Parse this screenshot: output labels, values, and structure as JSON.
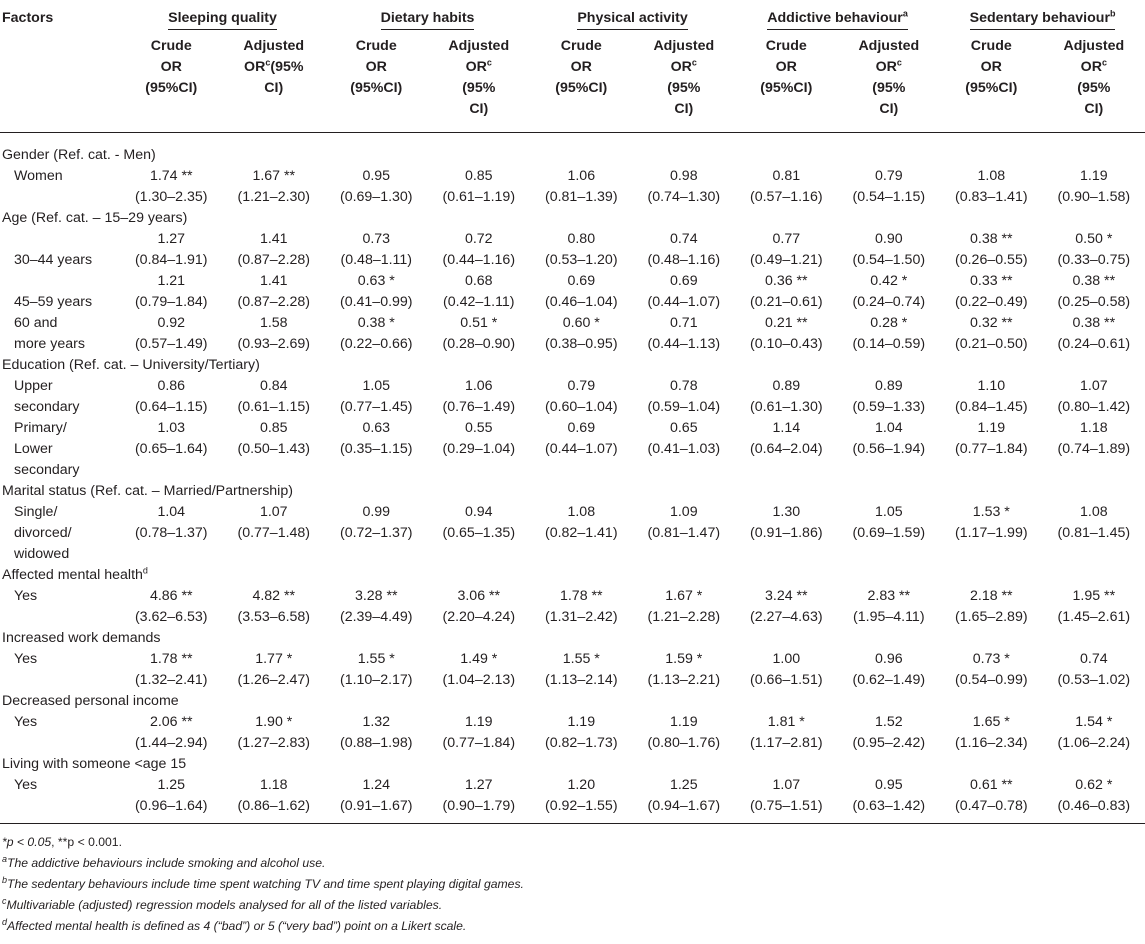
{
  "header": {
    "factors": "Factors",
    "groups": [
      {
        "label": "Sleeping quality",
        "sup": ""
      },
      {
        "label": "Dietary habits",
        "sup": ""
      },
      {
        "label": "Physical activity",
        "sup": ""
      },
      {
        "label": "Addictive behaviour",
        "sup": "a"
      },
      {
        "label": "Sedentary behaviour",
        "sup": "b"
      }
    ],
    "sub": [
      {
        "l1": "Crude",
        "l2": "OR",
        "l3": "(95%CI)"
      },
      {
        "l1": "Adjusted",
        "l2": "OR",
        "l2sup": "c",
        "l2b": "(95%",
        "l3": "CI)"
      },
      {
        "l1": "Crude",
        "l2": "OR",
        "l3": "(95%CI)"
      },
      {
        "l1": "Adjusted",
        "l2": "OR",
        "l2sup": "c",
        "l3": "(95%",
        "l4": "CI)"
      },
      {
        "l1": "Crude",
        "l2": "OR",
        "l3": "(95%CI)"
      },
      {
        "l1": "Adjusted",
        "l2": "OR",
        "l2sup": "c",
        "l3": "(95%",
        "l4": "CI)"
      },
      {
        "l1": "Crude",
        "l2": "OR",
        "l3": "(95%CI)"
      },
      {
        "l1": "Adjusted",
        "l2": "OR",
        "l2sup": "c",
        "l3": "(95%",
        "l4": "CI)"
      },
      {
        "l1": "Crude",
        "l2": "OR",
        "l3": "(95%CI)"
      },
      {
        "l1": "Adjusted",
        "l2": "OR",
        "l2sup": "c",
        "l3": "(95%",
        "l4": "CI)"
      }
    ]
  },
  "rows": {
    "gender": {
      "title": "Gender (Ref. cat. - Men)"
    },
    "women": {
      "label": "Women",
      "or": [
        "1.74 **",
        "1.67 **",
        "0.95",
        "0.85",
        "1.06",
        "0.98",
        "0.81",
        "0.79",
        "1.08",
        "1.19"
      ],
      "ci": [
        "(1.30–2.35)",
        "(1.21–2.30)",
        "(0.69–1.30)",
        "(0.61–1.19)",
        "(0.81–1.39)",
        "(0.74–1.30)",
        "(0.57–1.16)",
        "(0.54–1.15)",
        "(0.83–1.41)",
        "(0.90–1.58)"
      ]
    },
    "age": {
      "title": "Age (Ref. cat. – 15–29 years)"
    },
    "age3044": {
      "label": "30–44 years",
      "or": [
        "1.27",
        "1.41",
        "0.73",
        "0.72",
        "0.80",
        "0.74",
        "0.77",
        "0.90",
        "0.38 **",
        "0.50 *"
      ],
      "ci": [
        "(0.84–1.91)",
        "(0.87–2.28)",
        "(0.48–1.11)",
        "(0.44–1.16)",
        "(0.53–1.20)",
        "(0.48–1.16)",
        "(0.49–1.21)",
        "(0.54–1.50)",
        "(0.26–0.55)",
        "(0.33–0.75)"
      ]
    },
    "age4559": {
      "label": "45–59 years",
      "or": [
        "1.21",
        "1.41",
        "0.63 *",
        "0.68",
        "0.69",
        "0.69",
        "0.36 **",
        "0.42 *",
        "0.33 **",
        "0.38 **"
      ],
      "ci": [
        "(0.79–1.84)",
        "(0.87–2.28)",
        "(0.41–0.99)",
        "(0.42–1.11)",
        "(0.46–1.04)",
        "(0.44–1.07)",
        "(0.21–0.61)",
        "(0.24–0.74)",
        "(0.22–0.49)",
        "(0.25–0.58)"
      ]
    },
    "age60": {
      "label1": "60 and",
      "label2": "more years",
      "or": [
        "0.92",
        "1.58",
        "0.38 *",
        "0.51 *",
        "0.60 *",
        "0.71",
        "0.21 **",
        "0.28 *",
        "0.32 **",
        "0.38 **"
      ],
      "ci": [
        "(0.57–1.49)",
        "(0.93–2.69)",
        "(0.22–0.66)",
        "(0.28–0.90)",
        "(0.38–0.95)",
        "(0.44–1.13)",
        "(0.10–0.43)",
        "(0.14–0.59)",
        "(0.21–0.50)",
        "(0.24–0.61)"
      ]
    },
    "education": {
      "title": "Education (Ref. cat. – University/Tertiary)"
    },
    "upper": {
      "label1": "Upper",
      "label2": "secondary",
      "or": [
        "0.86",
        "0.84",
        "1.05",
        "1.06",
        "0.79",
        "0.78",
        "0.89",
        "0.89",
        "1.10",
        "1.07"
      ],
      "ci": [
        "(0.64–1.15)",
        "(0.61–1.15)",
        "(0.77–1.45)",
        "(0.76–1.49)",
        "(0.60–1.04)",
        "(0.59–1.04)",
        "(0.61–1.30)",
        "(0.59–1.33)",
        "(0.84–1.45)",
        "(0.80–1.42)"
      ]
    },
    "primary": {
      "label1": "Primary/",
      "label2": "Lower",
      "label3": "secondary",
      "or": [
        "1.03",
        "0.85",
        "0.63",
        "0.55",
        "0.69",
        "0.65",
        "1.14",
        "1.04",
        "1.19",
        "1.18"
      ],
      "ci": [
        "(0.65–1.64)",
        "(0.50–1.43)",
        "(0.35–1.15)",
        "(0.29–1.04)",
        "(0.44–1.07)",
        "(0.41–1.03)",
        "(0.64–2.04)",
        "(0.56–1.94)",
        "(0.77–1.84)",
        "(0.74–1.89)"
      ]
    },
    "marital": {
      "title": "Marital status (Ref. cat. – Married/Partnership)"
    },
    "single": {
      "label1": "Single/",
      "label2": "divorced/",
      "label3": "widowed",
      "or": [
        "1.04",
        "1.07",
        "0.99",
        "0.94",
        "1.08",
        "1.09",
        "1.30",
        "1.05",
        "1.53 *",
        "1.08"
      ],
      "ci": [
        "(0.78–1.37)",
        "(0.77–1.48)",
        "(0.72–1.37)",
        "(0.65–1.35)",
        "(0.82–1.41)",
        "(0.81–1.47)",
        "(0.91–1.86)",
        "(0.69–1.59)",
        "(1.17–1.99)",
        "(0.81–1.45)"
      ]
    },
    "mental": {
      "title": "Affected mental health",
      "sup": "d"
    },
    "mental_yes": {
      "label": "Yes",
      "or": [
        "4.86 **",
        "4.82 **",
        "3.28 **",
        "3.06 **",
        "1.78 **",
        "1.67 *",
        "3.24 **",
        "2.83 **",
        "2.18 **",
        "1.95 **"
      ],
      "ci": [
        "(3.62–6.53)",
        "(3.53–6.58)",
        "(2.39–4.49)",
        "(2.20–4.24)",
        "(1.31–2.42)",
        "(1.21–2.28)",
        "(2.27–4.63)",
        "(1.95–4.11)",
        "(1.65–2.89)",
        "(1.45–2.61)"
      ]
    },
    "work": {
      "title": "Increased work demands"
    },
    "work_yes": {
      "label": "Yes",
      "or": [
        "1.78 **",
        "1.77 *",
        "1.55 *",
        "1.49 *",
        "1.55 *",
        "1.59 *",
        "1.00",
        "0.96",
        "0.73 *",
        "0.74"
      ],
      "ci": [
        "(1.32–2.41)",
        "(1.26–2.47)",
        "(1.10–2.17)",
        "(1.04–2.13)",
        "(1.13–2.14)",
        "(1.13–2.21)",
        "(0.66–1.51)",
        "(0.62–1.49)",
        "(0.54–0.99)",
        "(0.53–1.02)"
      ]
    },
    "income": {
      "title": "Decreased personal income"
    },
    "income_yes": {
      "label": "Yes",
      "or": [
        "2.06 **",
        "1.90 *",
        "1.32",
        "1.19",
        "1.19",
        "1.19",
        "1.81 *",
        "1.52",
        "1.65 *",
        "1.54 *"
      ],
      "ci": [
        "(1.44–2.94)",
        "(1.27–2.83)",
        "(0.88–1.98)",
        "(0.77–1.84)",
        "(0.82–1.73)",
        "(0.80–1.76)",
        "(1.17–2.81)",
        "(0.95–2.42)",
        "(1.16–2.34)",
        "(1.06–2.24)"
      ]
    },
    "living": {
      "title": "Living with someone <age 15"
    },
    "living_yes": {
      "label": "Yes",
      "or": [
        "1.25",
        "1.18",
        "1.24",
        "1.27",
        "1.20",
        "1.25",
        "1.07",
        "0.95",
        "0.61 **",
        "0.62 *"
      ],
      "ci": [
        "(0.96–1.64)",
        "(0.86–1.62)",
        "(0.91–1.67)",
        "(0.90–1.79)",
        "(0.92–1.55)",
        "(0.94–1.67)",
        "(0.75–1.51)",
        "(0.63–1.42)",
        "(0.47–0.78)",
        "(0.46–0.83)"
      ]
    }
  },
  "notes": {
    "sig_a": "*p < 0.05",
    "sig_mid": ", **p < 0.001",
    "sig_end": ".",
    "a_sup": "a",
    "a": "The addictive behaviours include smoking and alcohol use.",
    "b_sup": "b",
    "b": "The sedentary behaviours include time spent watching TV and time spent playing digital games.",
    "c_sup": "c",
    "c": "Multivariable (adjusted) regression models analysed for all of the listed variables.",
    "d_sup": "d",
    "d": "Affected mental health is defined as 4 (“bad”) or 5 (“very bad”) point on a Likert scale."
  }
}
